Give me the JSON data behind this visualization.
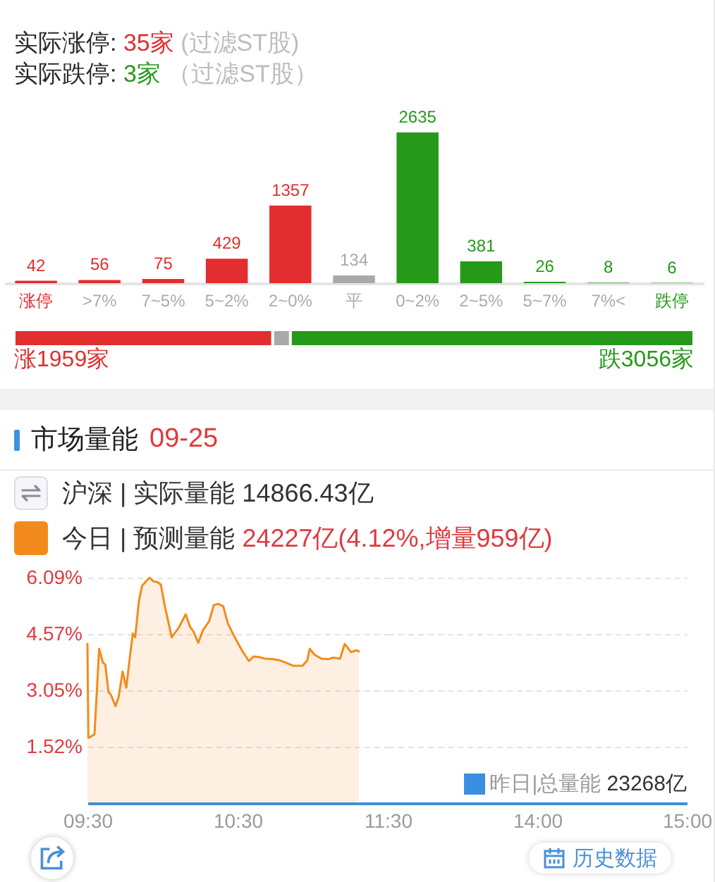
{
  "chart_data": [
    {
      "type": "bar",
      "annotations": [
        "实际涨停: 35家 (过滤ST股)",
        "实际跌停: 3家 （过滤ST股）"
      ],
      "categories": [
        "涨停",
        ">7%",
        "7~5%",
        "5~2%",
        "2~0%",
        "平",
        "0~2%",
        "2~5%",
        "5~7%",
        "7%<",
        "跌停"
      ],
      "values": [
        42,
        56,
        75,
        429,
        1357,
        134,
        2635,
        381,
        26,
        8,
        6
      ],
      "colors": [
        "#e22e2e",
        "#e22e2e",
        "#e22e2e",
        "#e22e2e",
        "#e22e2e",
        "#a9a9a9",
        "#26991b",
        "#26991b",
        "#26991b",
        "#26991b",
        "#26991b"
      ],
      "ylim": [
        0,
        2635
      ],
      "tick_labels": "x",
      "data_labels": true
    },
    {
      "type": "bar",
      "orientation": "horizontal",
      "stacked": true,
      "categories": [
        null
      ],
      "series": [
        {
          "color": "#e22e2e",
          "values": [
            1959
          ],
          "value_labels": [
            "涨1959家"
          ]
        },
        {
          "color": "#a9a9a9",
          "values": [
            134
          ]
        },
        {
          "color": "#26991b",
          "values": [
            3056
          ],
          "value_labels": [
            "跌3056家"
          ]
        }
      ],
      "tick_labels": false
    },
    {
      "type": "area",
      "title": "市场量能",
      "subtitle": "09-25",
      "annotations": [
        "沪深 | 实际量能 14866.43亿",
        "历史数据"
      ],
      "legend": "top",
      "grid": "y",
      "x": [
        9.5,
        9.506,
        9.516,
        9.547,
        9.578,
        9.603,
        9.619,
        9.64,
        9.656,
        9.687,
        9.708,
        9.734,
        9.759,
        9.78,
        9.802,
        9.818,
        9.843,
        9.864,
        9.89,
        9.914,
        9.939,
        9.967,
        9.989,
        10.014,
        10.061,
        10.107,
        10.154,
        10.185,
        10.207,
        10.238,
        10.269,
        10.31,
        10.341,
        10.372,
        10.404,
        10.435,
        10.481,
        10.528,
        10.575,
        10.606,
        10.637,
        10.684,
        10.731,
        10.778,
        10.824,
        10.871,
        10.933,
        10.964,
        10.98,
        11.011,
        11.058,
        11.105,
        11.136,
        11.182,
        11.213,
        11.255,
        11.292,
        11.307
      ],
      "series": [
        {
          "name": "今日 | 预测量能 24227亿(4.12%,增量959亿)",
          "color": "#f38b1c",
          "values": [
            4.3,
            1.76,
            1.78,
            1.86,
            4.17,
            3.8,
            3.74,
            3.0,
            2.93,
            2.62,
            2.87,
            3.55,
            3.12,
            3.86,
            4.58,
            4.48,
            5.47,
            5.87,
            5.99,
            6.09,
            5.99,
            5.97,
            5.9,
            5.35,
            4.48,
            4.73,
            5.1,
            4.75,
            4.63,
            4.33,
            4.67,
            4.91,
            5.35,
            5.38,
            5.32,
            4.85,
            4.48,
            4.13,
            3.84,
            3.96,
            3.95,
            3.9,
            3.89,
            3.86,
            3.79,
            3.71,
            3.71,
            3.86,
            4.17,
            4.01,
            3.9,
            3.89,
            3.93,
            3.9,
            4.3,
            4.08,
            4.13,
            4.1
          ]
        }
      ],
      "xlim": [
        9.5,
        11.5
      ],
      "xticks": [
        {
          "value": 9.5,
          "label": "09:30"
        },
        {
          "value": 10.5,
          "label": "10:30"
        },
        {
          "value": 11.5,
          "label": "11:30"
        }
      ],
      "ylim": [
        0,
        6.09
      ],
      "yticks": [
        {
          "value": 1.52,
          "label": "1.52%"
        },
        {
          "value": 3.05,
          "label": "3.05%"
        },
        {
          "value": 4.57,
          "label": "4.57%"
        },
        {
          "value": 6.09,
          "label": "6.09%"
        }
      ]
    },
    {
      "type": "area",
      "grid": "y",
      "tick_labels": "x",
      "annotations": [
        "昨日|总量能 23268亿"
      ],
      "xlim": [
        13,
        15
      ],
      "xticks": [
        {
          "value": 14,
          "label": "14:00"
        },
        {
          "value": 15,
          "label": "15:00"
        }
      ],
      "ylim": [
        0,
        6.09
      ],
      "yticks": [
        {
          "value": 1.52,
          "label": null
        },
        {
          "value": 3.05,
          "label": null
        },
        {
          "value": 4.57,
          "label": null
        },
        {
          "value": 6.09,
          "label": null
        }
      ]
    }
  ]
}
